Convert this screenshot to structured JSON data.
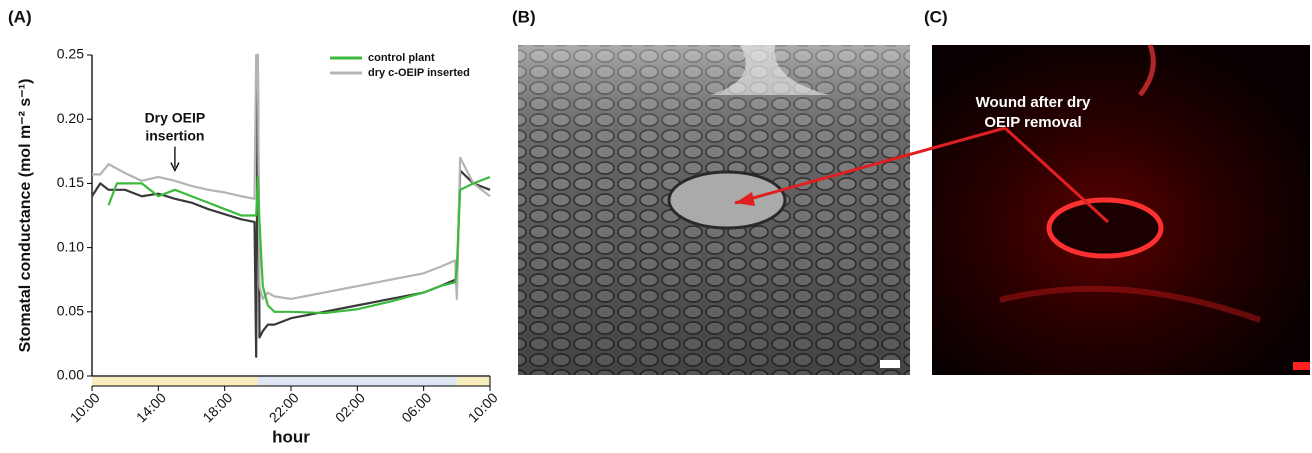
{
  "panels": {
    "a": "(A)",
    "b": "(B)",
    "c": "(C)"
  },
  "chart_data": {
    "type": "line",
    "y_label": "Stomatal conductance (mol m⁻² s⁻¹)",
    "x_label": "hour",
    "annotation": {
      "text": [
        "Dry OEIP",
        "insertion"
      ],
      "x": 5,
      "y": 0.16
    },
    "xlim": [
      0,
      24
    ],
    "xticks": [
      {
        "value": 0,
        "label": "10:00"
      },
      {
        "value": 4,
        "label": "14:00"
      },
      {
        "value": 8,
        "label": "18:00"
      },
      {
        "value": 12,
        "label": "22:00"
      },
      {
        "value": 16,
        "label": "02:00"
      },
      {
        "value": 20,
        "label": "06:00"
      },
      {
        "value": 24,
        "label": "10:00"
      }
    ],
    "ylim": [
      0,
      0.25
    ],
    "yticks": [
      {
        "value": 0,
        "label": "0.00"
      },
      0.05,
      {
        "value": 0.1,
        "label": "0.10"
      },
      0.15,
      {
        "value": 0.2,
        "label": "0.20"
      },
      0.25
    ],
    "light_periods": [
      {
        "start": 0,
        "end": 10,
        "color": "#f7edbf"
      },
      {
        "start": 10,
        "end": 22,
        "color": "#dde6f2"
      },
      {
        "start": 22,
        "end": 24,
        "color": "#f7edbf"
      }
    ],
    "series": [
      {
        "color": "#3a3a3a",
        "x": [
          0,
          0.5,
          1,
          2,
          3,
          4,
          5,
          6,
          7,
          8,
          9,
          9.8,
          9.9,
          10,
          10.1,
          10.3,
          10.6,
          11,
          12,
          14,
          16,
          18,
          20,
          21,
          21.9,
          22,
          22.2,
          23,
          24
        ],
        "values": [
          0.14,
          0.15,
          0.145,
          0.145,
          0.14,
          0.142,
          0.138,
          0.135,
          0.13,
          0.126,
          0.122,
          0.12,
          0.015,
          0.25,
          0.03,
          0.035,
          0.04,
          0.04,
          0.045,
          0.05,
          0.055,
          0.06,
          0.065,
          0.07,
          0.075,
          0.07,
          0.16,
          0.15,
          0.145
        ]
      },
      {
        "name": "dry c-OEIP inserted",
        "color": "#b4b4b4",
        "x": [
          0,
          0.5,
          1,
          2,
          3,
          4,
          5,
          6,
          7,
          8,
          9,
          9.8,
          9.9,
          10,
          10.1,
          10.3,
          10.6,
          11,
          12,
          14,
          16,
          18,
          20,
          21,
          21.9,
          22,
          22.2,
          23,
          24
        ],
        "values": [
          0.157,
          0.157,
          0.165,
          0.158,
          0.152,
          0.155,
          0.152,
          0.148,
          0.145,
          0.143,
          0.14,
          0.138,
          0.25,
          0.25,
          0.07,
          0.06,
          0.065,
          0.062,
          0.06,
          0.065,
          0.07,
          0.075,
          0.08,
          0.085,
          0.09,
          0.06,
          0.17,
          0.15,
          0.14
        ]
      },
      {
        "name": "control plant",
        "color": "#3dba3d",
        "x": [
          1,
          1.5,
          2,
          3,
          4,
          5,
          6,
          7,
          8,
          9,
          9.9,
          10,
          10.1,
          10.3,
          10.6,
          11,
          12,
          14,
          16,
          18,
          20,
          21,
          21.9,
          22,
          22.2,
          23,
          24
        ],
        "values": [
          0.133,
          0.15,
          0.15,
          0.15,
          0.14,
          0.145,
          0.14,
          0.135,
          0.13,
          0.125,
          0.125,
          0.155,
          0.12,
          0.07,
          0.055,
          0.05,
          0.05,
          0.049,
          0.052,
          0.058,
          0.065,
          0.07,
          0.073,
          0.085,
          0.145,
          0.15,
          0.155
        ]
      }
    ]
  },
  "wound_label": [
    "Wound after dry",
    "OEIP removal"
  ]
}
